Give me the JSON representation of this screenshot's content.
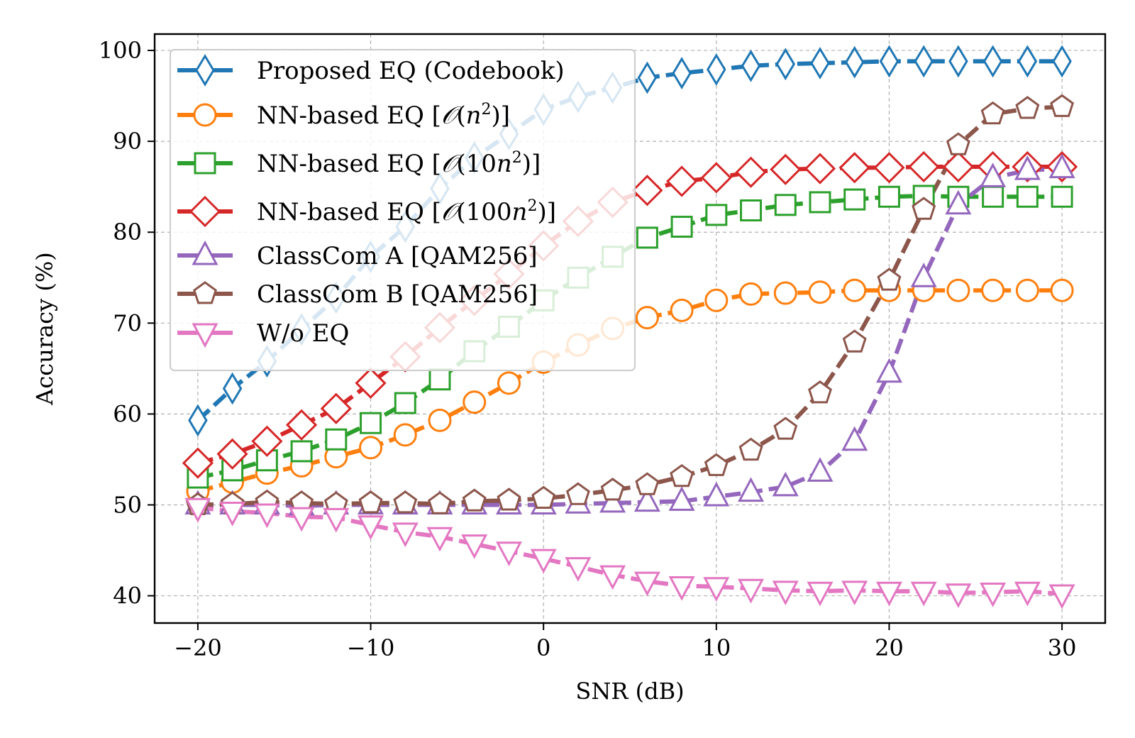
{
  "chart_data": {
    "type": "line",
    "title": "",
    "xlabel": "SNR (dB)",
    "ylabel": "Accuracy (%)",
    "xlim": [
      -22.5,
      32.5
    ],
    "ylim": [
      37,
      101.8
    ],
    "xticks": [
      -20,
      -10,
      0,
      10,
      20,
      30
    ],
    "xtick_labels": [
      "−20",
      "−10",
      "0",
      "10",
      "20",
      "30"
    ],
    "yticks": [
      40,
      50,
      60,
      70,
      80,
      90,
      100
    ],
    "ytick_labels": [
      "40",
      "50",
      "60",
      "70",
      "80",
      "90",
      "100"
    ],
    "grid": true,
    "legend_position": "top-left",
    "x": [
      -20,
      -18,
      -16,
      -14,
      -12,
      -10,
      -8,
      -6,
      -4,
      -2,
      0,
      2,
      4,
      6,
      8,
      10,
      12,
      14,
      16,
      18,
      20,
      22,
      24,
      26,
      28,
      30
    ],
    "series": [
      {
        "name": "Proposed EQ (Codebook)",
        "legend_parts": [
          "Proposed EQ (Codebook)"
        ],
        "color": "#1f77b4",
        "marker": "thin-diamond",
        "values": [
          59.3,
          62.8,
          65.8,
          69.3,
          72.8,
          77.3,
          80.6,
          84.8,
          88.2,
          90.8,
          93.5,
          94.9,
          95.9,
          97.0,
          97.5,
          97.9,
          98.3,
          98.5,
          98.6,
          98.7,
          98.8,
          98.8,
          98.8,
          98.8,
          98.8,
          98.8
        ]
      },
      {
        "name": "NN-based EQ [O(n^2)]",
        "legend_parts": [
          "NN-based EQ [",
          "𝒪",
          "(",
          "n",
          "2",
          ")]"
        ],
        "color": "#ff7f0e",
        "marker": "circle",
        "values": [
          51.5,
          52.5,
          53.5,
          54.3,
          55.3,
          56.3,
          57.7,
          59.3,
          61.3,
          63.4,
          65.7,
          67.6,
          69.4,
          70.6,
          71.4,
          72.5,
          73.2,
          73.3,
          73.4,
          73.6,
          73.6,
          73.6,
          73.6,
          73.6,
          73.6,
          73.6
        ]
      },
      {
        "name": "NN-based EQ [O(10n^2)]",
        "legend_parts": [
          "NN-based EQ [",
          "𝒪",
          "(10",
          "n",
          "2",
          ")]"
        ],
        "color": "#2ca02c",
        "marker": "square",
        "values": [
          53.0,
          53.8,
          54.9,
          55.9,
          57.2,
          59.0,
          61.2,
          63.8,
          66.9,
          69.6,
          72.5,
          75.0,
          77.3,
          79.4,
          80.6,
          81.9,
          82.4,
          83.0,
          83.3,
          83.6,
          83.9,
          84.0,
          83.9,
          83.9,
          83.9,
          83.9
        ]
      },
      {
        "name": "NN-based EQ [O(100n^2)]",
        "legend_parts": [
          "NN-based EQ [",
          "𝒪",
          "(100",
          "n",
          "2",
          ")]"
        ],
        "color": "#d62728",
        "marker": "diamond",
        "values": [
          54.6,
          55.6,
          57.0,
          58.8,
          60.6,
          63.4,
          66.3,
          69.5,
          72.5,
          75.4,
          78.5,
          81.2,
          83.3,
          84.6,
          85.6,
          86.0,
          86.6,
          86.9,
          87.0,
          87.1,
          87.1,
          87.2,
          87.2,
          87.2,
          87.2,
          87.2
        ]
      },
      {
        "name": "ClassCom A [QAM256]",
        "legend_parts": [
          "ClassCom A [QAM256]"
        ],
        "color": "#9467bd",
        "marker": "triangle-up",
        "values": [
          50.0,
          50.0,
          50.0,
          49.9,
          50.0,
          50.0,
          50.0,
          50.0,
          50.0,
          50.0,
          50.0,
          50.1,
          50.2,
          50.3,
          50.4,
          50.9,
          51.4,
          52.0,
          53.6,
          57.0,
          64.5,
          75.0,
          83.0,
          86.0,
          86.8,
          87.0
        ]
      },
      {
        "name": "ClassCom B [QAM256]",
        "legend_parts": [
          "ClassCom B [QAM256]"
        ],
        "color": "#8c564b",
        "marker": "pentagon",
        "values": [
          50.0,
          50.1,
          50.3,
          50.2,
          50.1,
          50.2,
          50.2,
          50.1,
          50.4,
          50.5,
          50.7,
          51.1,
          51.6,
          52.2,
          53.1,
          54.3,
          56.0,
          58.3,
          62.3,
          67.9,
          74.7,
          82.5,
          89.6,
          93.0,
          93.6,
          93.8
        ]
      },
      {
        "name": "W/o EQ",
        "legend_parts": [
          "W/o EQ"
        ],
        "color": "#e377c2",
        "marker": "triangle-down",
        "values": [
          49.7,
          49.3,
          49.1,
          48.7,
          48.6,
          47.8,
          47.0,
          46.5,
          45.7,
          44.9,
          44.1,
          43.2,
          42.3,
          41.6,
          41.1,
          41.0,
          40.8,
          40.6,
          40.5,
          40.6,
          40.5,
          40.5,
          40.3,
          40.4,
          40.5,
          40.2
        ]
      }
    ]
  }
}
